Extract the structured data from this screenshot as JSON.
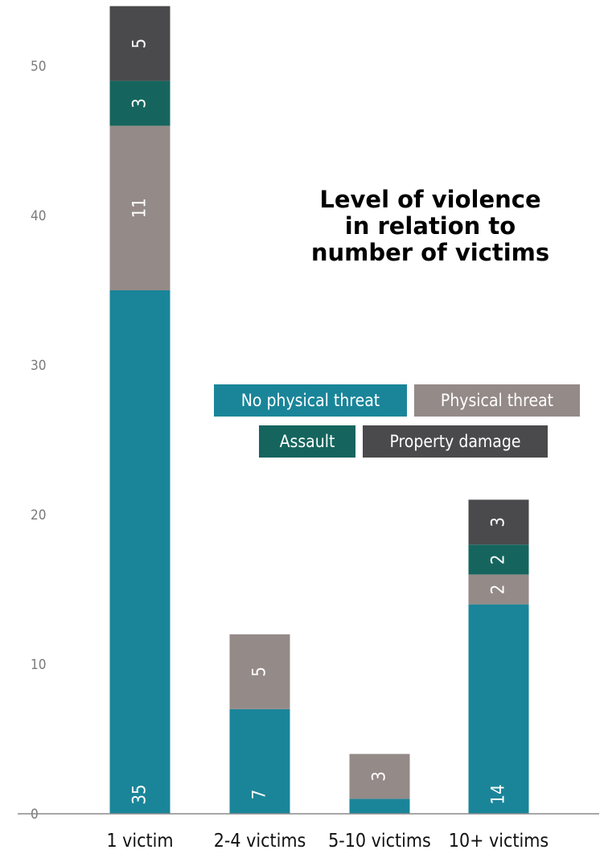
{
  "chart_data": {
    "type": "bar",
    "stacked": true,
    "title_lines": [
      "Level of violence",
      "in relation to",
      "number of victims"
    ],
    "categories": [
      "1 victim",
      "2-4 victims",
      "5-10 victims",
      "10+ victims"
    ],
    "series": [
      {
        "name": "No physical threat",
        "color": "#1a8599",
        "values": [
          35,
          7,
          1,
          14
        ],
        "labels": [
          "35",
          "7",
          "",
          "14"
        ]
      },
      {
        "name": "Physical threat",
        "color": "#948a88",
        "values": [
          11,
          5,
          3,
          2
        ],
        "labels": [
          "11",
          "5",
          "3",
          "2"
        ]
      },
      {
        "name": "Assault",
        "color": "#15655e",
        "values": [
          3,
          0,
          0,
          2
        ],
        "labels": [
          "3",
          "",
          "",
          "2"
        ]
      },
      {
        "name": "Property damage",
        "color": "#4a4a4c",
        "values": [
          5,
          0,
          0,
          3
        ],
        "labels": [
          "5",
          "",
          "",
          "3"
        ]
      }
    ],
    "y_ticks": [
      "0",
      "10",
      "20",
      "30",
      "40",
      "50"
    ],
    "ylim": [
      0,
      55
    ],
    "grid": false,
    "legend_position": "center-right"
  }
}
